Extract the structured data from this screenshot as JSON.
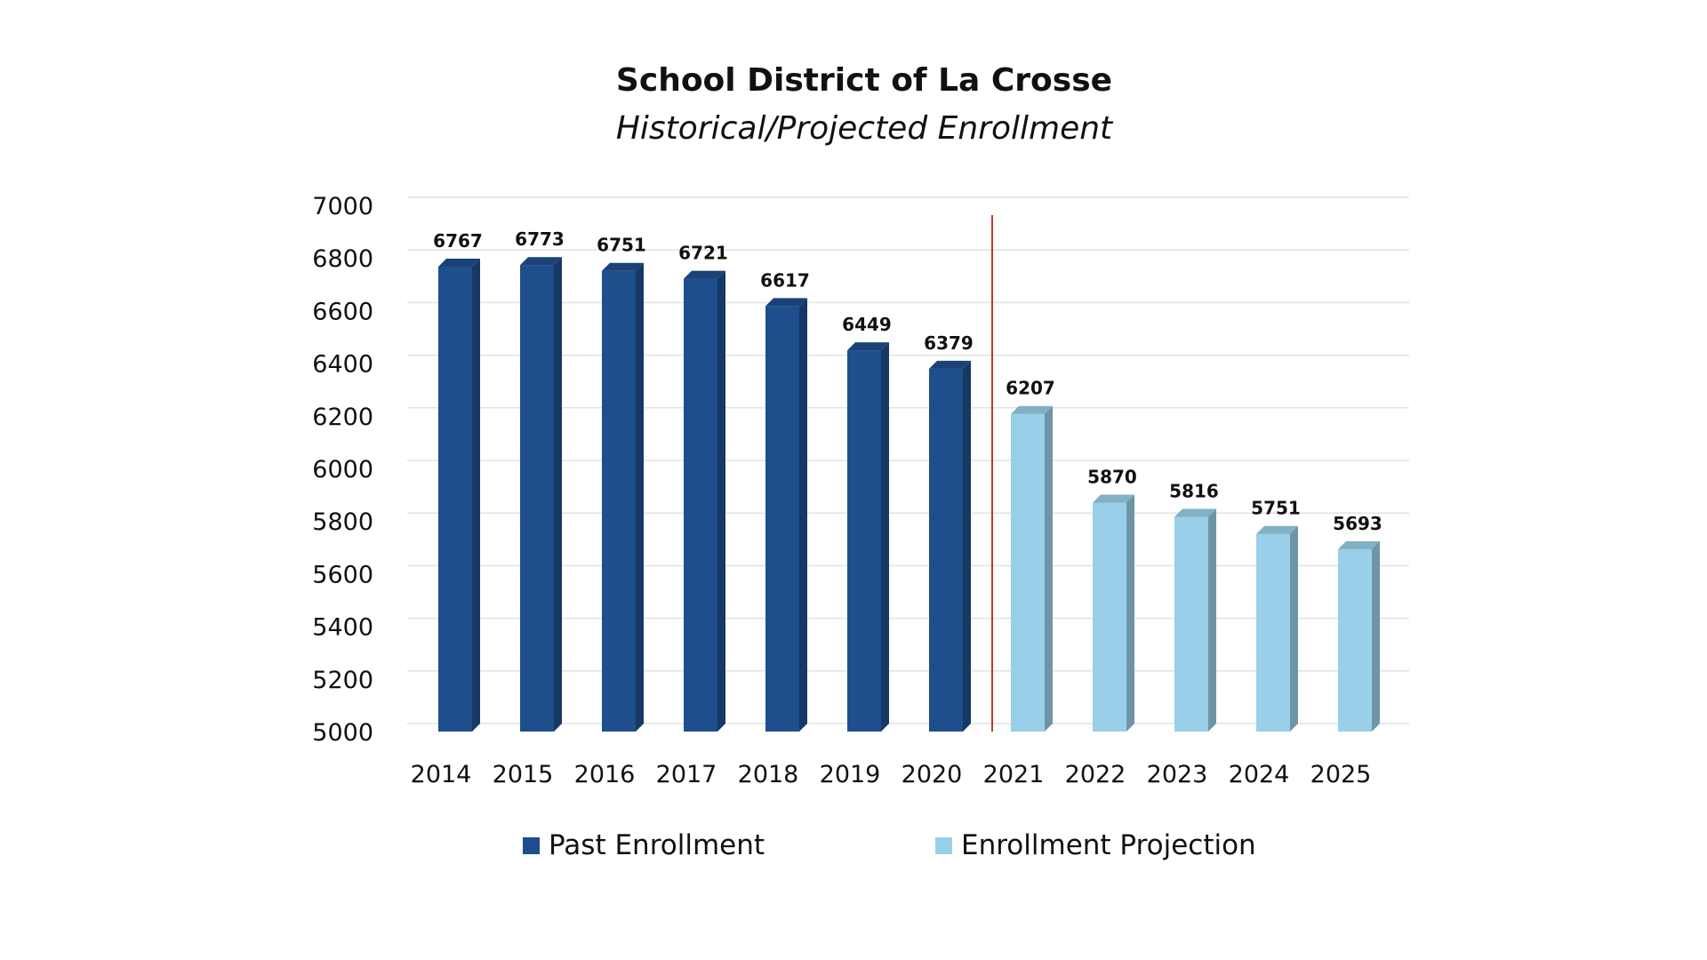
{
  "chart_data": {
    "type": "bar",
    "title": "School District of La Crosse",
    "subtitle": "Historical/Projected Enrollment",
    "categories": [
      "2014",
      "2015",
      "2016",
      "2017",
      "2018",
      "2019",
      "2020",
      "2021",
      "2022",
      "2023",
      "2024",
      "2025"
    ],
    "series": [
      {
        "name": "Past Enrollment",
        "color": "#1f4e8c",
        "values": [
          6767,
          6773,
          6751,
          6721,
          6617,
          6449,
          6379,
          null,
          null,
          null,
          null,
          null
        ]
      },
      {
        "name": "Enrollment Projection",
        "color": "#99cfe8",
        "values": [
          null,
          null,
          null,
          null,
          null,
          null,
          null,
          6207,
          5870,
          5816,
          5751,
          5693
        ]
      }
    ],
    "data_labels": [
      "6767",
      "6773",
      "6751",
      "6721",
      "6617",
      "6449",
      "6379",
      "6207",
      "5870",
      "5816",
      "5751",
      "5693"
    ],
    "ylim": [
      5000,
      7000
    ],
    "yticks": [
      5000,
      5200,
      5400,
      5600,
      5800,
      6000,
      6200,
      6400,
      6600,
      6800,
      7000
    ],
    "ytick_labels": [
      "5000",
      "5200",
      "5400",
      "5600",
      "5800",
      "6000",
      "6200",
      "6400",
      "6600",
      "6800",
      "7000"
    ],
    "grid": true,
    "divider_after_category": "2020",
    "divider_color": "#c0392b",
    "legend_position": "bottom"
  }
}
